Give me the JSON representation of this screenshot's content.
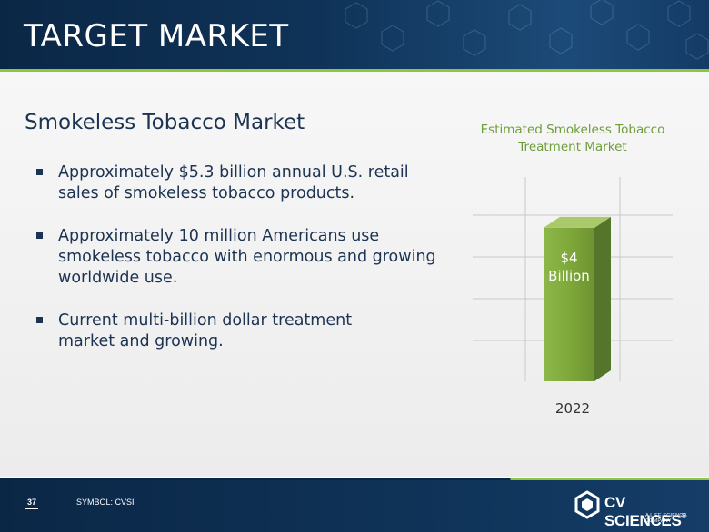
{
  "slide": {
    "title": "TARGET MARKET",
    "subtitle": "Smokeless Tobacco Market",
    "bullets": [
      {
        "text": "Approximately $5.3 billion annual U.S. retail sales of smokeless tobacco products."
      },
      {
        "text": "Approximately 10 million Americans use smokeless tobacco with enormous and growing worldwide use."
      },
      {
        "text": "Current multi-billion dollar treatment market and growing."
      }
    ]
  },
  "chart_data": {
    "type": "bar",
    "title": "Estimated Smokeless Tobacco Treatment Market",
    "categories": [
      "2022"
    ],
    "values": [
      4
    ],
    "data_labels": [
      "$4 Billion"
    ],
    "unit": "Billion USD",
    "style": "3d",
    "grid": true,
    "bar_color": "#7fa83a"
  },
  "footer": {
    "page_number": "37",
    "symbol": "SYMBOL: CVSI",
    "logo_text": "CV SCIENCES",
    "logo_tagline": "A LIFE SCIENCE COMPANY"
  },
  "colors": {
    "header_bg": "#0f3358",
    "accent_green": "#8dc63f",
    "text_navy": "#1c3352",
    "chart_title": "#6e9e3a"
  }
}
